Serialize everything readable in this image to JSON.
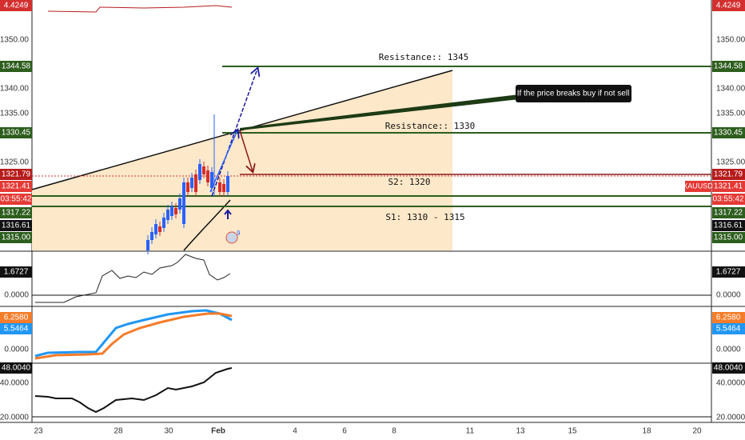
{
  "price_axis": {
    "ticks": [
      "1350.00",
      "1340.00",
      "1335.00",
      "1325.00",
      "1315.00"
    ]
  },
  "price_tags": {
    "top": "4.4249",
    "r1345": "1344.58",
    "r1330": "1330.45",
    "last": "1321.79",
    "bid": "1321.41",
    "timer": "03:55:42",
    "l1": "1317.22",
    "l2": "1316.61",
    "l3": "1315.00"
  },
  "symbol": "XAUUSD",
  "annotations": {
    "res1": "Resistance:: 1345",
    "res2": "Resistance:: 1330",
    "s2": "S2: 1320",
    "s1": "S1: 1310 - 1315",
    "callout": "If the price breaks buy if not sell",
    "badge": "9"
  },
  "indicators": {
    "pane1": {
      "value": "1.6727",
      "zero": "0.0000"
    },
    "pane2": {
      "fast": "6.2580",
      "slow": "5.5464",
      "zero": "0.0000"
    },
    "pane3": {
      "value": "48.0040",
      "mid": "40.0000",
      "low": "20.0000"
    }
  },
  "time_axis": [
    "23",
    "28",
    "30",
    "Feb",
    "4",
    "6",
    "8",
    "11",
    "13",
    "15",
    "18",
    "20"
  ]
}
